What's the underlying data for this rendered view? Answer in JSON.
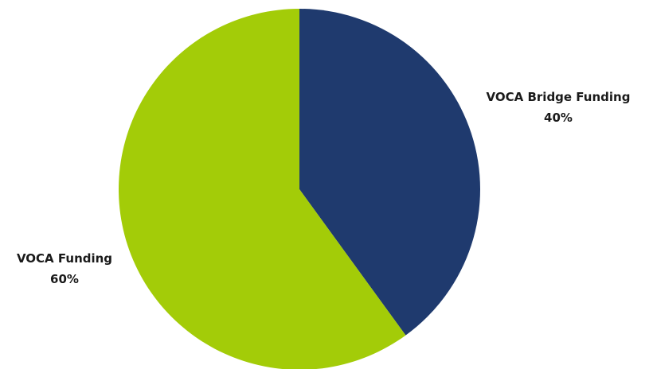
{
  "chart_data": {
    "type": "pie",
    "categories": [
      "VOCA Bridge Funding",
      "VOCA Funding"
    ],
    "values": [
      40,
      60
    ],
    "value_labels": [
      "40%",
      "60%"
    ],
    "colors": [
      "#1f3a6e",
      "#a3cc08"
    ],
    "start_angle": "12 o'clock",
    "direction": "clockwise",
    "legend": "none",
    "data_labels": "outside"
  }
}
